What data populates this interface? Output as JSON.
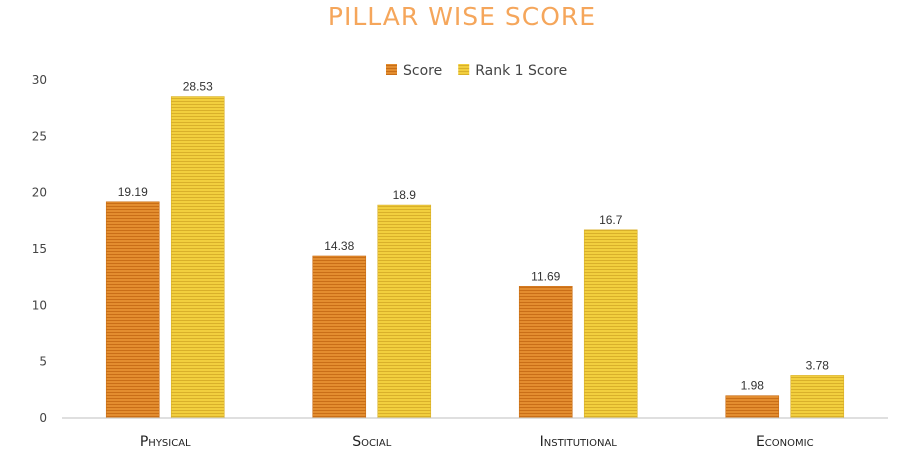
{
  "chart_data": {
    "type": "bar",
    "title": "PILLAR WISE SCORE",
    "categories": [
      "Physical",
      "Social",
      "Institutional",
      "Economic"
    ],
    "series": [
      {
        "name": "Score",
        "values": [
          19.19,
          14.38,
          11.69,
          1.98
        ],
        "color": "#E38D2F",
        "stripe": "#C96E17"
      },
      {
        "name": "Rank 1 Score",
        "values": [
          28.53,
          18.9,
          16.7,
          3.78
        ],
        "color": "#F2CF3E",
        "stripe": "#D9B02A"
      }
    ],
    "ylim": [
      0,
      30
    ],
    "yticks": [
      0,
      5,
      10,
      15,
      20,
      25,
      30
    ],
    "grid": false,
    "legend_position": "top-center",
    "title_color": "#F5A65B",
    "axis_color": "#BFBFBF"
  }
}
